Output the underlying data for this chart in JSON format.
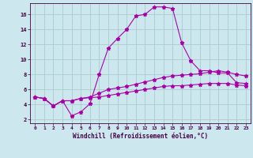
{
  "xlabel": "Windchill (Refroidissement éolien,°C)",
  "bg_color": "#cce8ee",
  "grid_color": "#aacccc",
  "line_color": "#aa00aa",
  "xlim": [
    -0.5,
    23.5
  ],
  "ylim": [
    1.5,
    17.5
  ],
  "yticks": [
    2,
    4,
    6,
    8,
    10,
    12,
    14,
    16
  ],
  "xticks": [
    0,
    1,
    2,
    3,
    4,
    5,
    6,
    7,
    8,
    9,
    10,
    11,
    12,
    13,
    14,
    15,
    16,
    17,
    18,
    19,
    20,
    21,
    22,
    23
  ],
  "curve1_x": [
    0,
    1,
    2,
    3,
    4,
    5,
    6,
    7,
    8,
    9,
    10,
    11,
    12,
    13,
    14,
    15,
    16,
    17,
    18,
    19,
    20,
    21,
    22,
    23
  ],
  "curve1_y": [
    5.0,
    4.8,
    3.8,
    4.5,
    2.5,
    3.0,
    4.1,
    8.0,
    11.5,
    12.8,
    14.0,
    15.8,
    16.0,
    17.0,
    17.0,
    16.8,
    12.2,
    9.8,
    8.5,
    8.5,
    8.2,
    8.2,
    6.9,
    6.8
  ],
  "curve2_x": [
    0,
    1,
    2,
    3,
    4,
    5,
    6,
    7,
    8,
    9,
    10,
    11,
    12,
    13,
    14,
    15,
    16,
    17,
    18,
    19,
    20,
    21,
    22,
    23
  ],
  "curve2_y": [
    5.0,
    4.8,
    3.8,
    4.5,
    4.5,
    4.8,
    5.0,
    5.5,
    6.0,
    6.2,
    6.4,
    6.7,
    7.0,
    7.3,
    7.6,
    7.8,
    7.9,
    8.0,
    8.1,
    8.3,
    8.5,
    8.3,
    8.0,
    7.8
  ],
  "curve3_x": [
    0,
    1,
    2,
    3,
    4,
    5,
    6,
    7,
    8,
    9,
    10,
    11,
    12,
    13,
    14,
    15,
    16,
    17,
    18,
    19,
    20,
    21,
    22,
    23
  ],
  "curve3_y": [
    5.0,
    4.8,
    3.8,
    4.5,
    4.5,
    4.8,
    4.9,
    5.0,
    5.2,
    5.4,
    5.6,
    5.8,
    6.0,
    6.2,
    6.4,
    6.5,
    6.5,
    6.6,
    6.7,
    6.8,
    6.8,
    6.8,
    6.6,
    6.5
  ]
}
